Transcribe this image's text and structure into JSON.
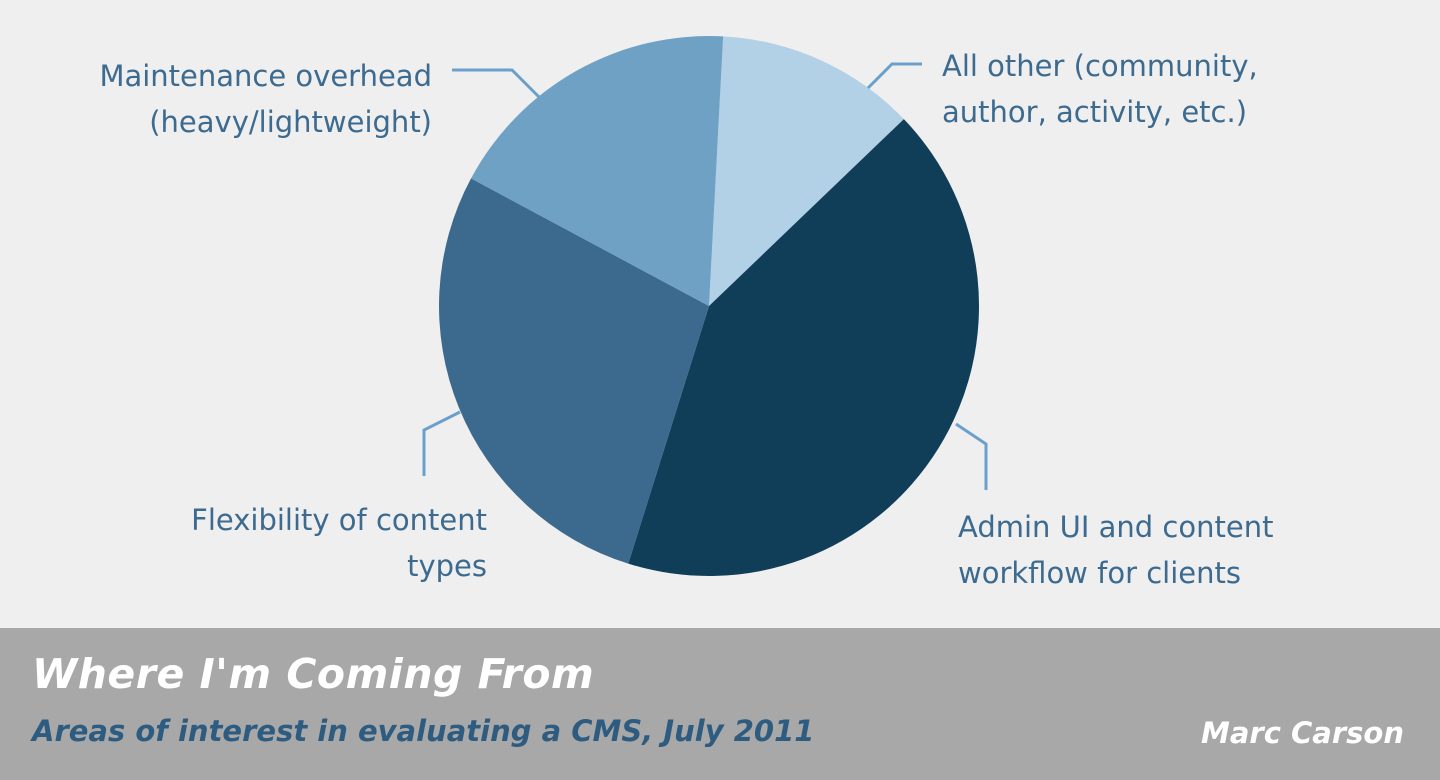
{
  "chart_data": {
    "type": "pie",
    "title": "Where I'm Coming From",
    "subtitle": "Areas of interest in evaluating a CMS, July 2011",
    "author": "Marc Carson",
    "slices": [
      {
        "label_lines": [
          "All other (community,",
          "author, activity, etc.)"
        ],
        "value": 12,
        "color": "#b3d1e6"
      },
      {
        "label_lines": [
          "Admin UI and content",
          "workflow for clients"
        ],
        "value": 42,
        "color": "#103e58"
      },
      {
        "label_lines": [
          "Flexibility of content",
          "types"
        ],
        "value": 28,
        "color": "#3c6a8e"
      },
      {
        "label_lines": [
          "Maintenance overhead",
          "(heavy/lightweight)"
        ],
        "value": 18,
        "color": "#6fa1c4"
      }
    ],
    "callout_color": "#6b9fcc",
    "label_color": "#3d6a8f"
  }
}
